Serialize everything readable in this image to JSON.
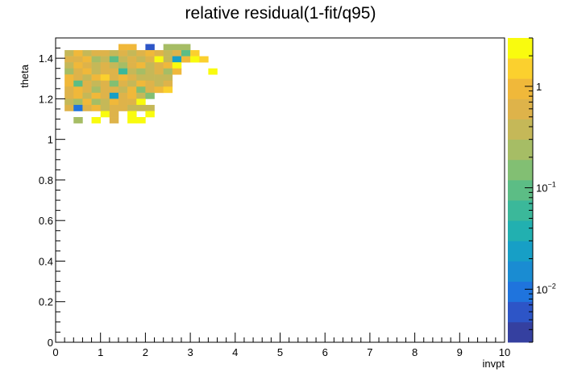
{
  "chart_data": {
    "type": "heatmap",
    "title": "relative residual(1-fit/q95)",
    "xlabel": "invpt",
    "ylabel": "theta",
    "xlim": [
      0,
      10
    ],
    "ylim": [
      0,
      1.5
    ],
    "x_ticks": [
      "0",
      "1",
      "2",
      "3",
      "4",
      "5",
      "6",
      "7",
      "8",
      "9",
      "10"
    ],
    "y_ticks": [
      "0",
      "0.2",
      "0.4",
      "0.6",
      "0.8",
      "1",
      "1.2",
      "1.4"
    ],
    "colorbar": {
      "scale": "log",
      "range": [
        0.003,
        3
      ],
      "tick_labels": [
        "10^-2",
        "10^-1",
        "1"
      ],
      "tick_values": [
        0.01,
        0.1,
        1
      ]
    },
    "bin_width": [
      0.2,
      0.03
    ],
    "cells": [
      [
        1.4,
        1.455,
        0.9
      ],
      [
        1.6,
        1.455,
        0.9
      ],
      [
        2.0,
        1.455,
        0.006
      ],
      [
        2.4,
        1.455,
        0.25
      ],
      [
        2.6,
        1.455,
        0.25
      ],
      [
        2.8,
        1.455,
        0.25
      ],
      [
        0.2,
        1.425,
        0.4
      ],
      [
        0.4,
        1.425,
        0.8
      ],
      [
        0.6,
        1.425,
        0.3
      ],
      [
        0.8,
        1.425,
        0.5
      ],
      [
        1.0,
        1.425,
        0.7
      ],
      [
        1.2,
        1.425,
        0.4
      ],
      [
        1.4,
        1.425,
        0.6
      ],
      [
        1.6,
        1.425,
        0.3
      ],
      [
        1.8,
        1.425,
        0.7
      ],
      [
        2.0,
        1.425,
        0.8
      ],
      [
        2.2,
        1.425,
        0.5
      ],
      [
        2.4,
        1.425,
        0.3
      ],
      [
        2.6,
        1.425,
        0.5
      ],
      [
        2.8,
        1.425,
        0.1
      ],
      [
        3.0,
        1.425,
        1.5
      ],
      [
        0.2,
        1.395,
        0.7
      ],
      [
        0.4,
        1.395,
        0.5
      ],
      [
        0.6,
        1.395,
        0.8
      ],
      [
        0.8,
        1.395,
        0.2
      ],
      [
        1.0,
        1.395,
        0.4
      ],
      [
        1.2,
        1.395,
        0.08
      ],
      [
        1.4,
        1.395,
        0.4
      ],
      [
        1.6,
        1.395,
        0.7
      ],
      [
        1.8,
        1.395,
        0.3
      ],
      [
        2.0,
        1.395,
        0.5
      ],
      [
        2.2,
        1.395,
        2.5
      ],
      [
        2.4,
        1.395,
        0.3
      ],
      [
        2.6,
        1.395,
        0.02
      ],
      [
        2.8,
        1.395,
        0.9
      ],
      [
        3.0,
        1.395,
        2.5
      ],
      [
        3.2,
        1.395,
        1.2
      ],
      [
        0.2,
        1.365,
        0.4
      ],
      [
        0.4,
        1.365,
        0.9
      ],
      [
        0.6,
        1.365,
        0.5
      ],
      [
        0.8,
        1.365,
        0.3
      ],
      [
        1.0,
        1.365,
        0.6
      ],
      [
        1.2,
        1.365,
        0.4
      ],
      [
        1.4,
        1.365,
        0.2
      ],
      [
        1.6,
        1.365,
        0.5
      ],
      [
        1.8,
        1.365,
        0.8
      ],
      [
        2.0,
        1.365,
        0.3
      ],
      [
        2.2,
        1.365,
        0.6
      ],
      [
        2.4,
        1.365,
        0.9
      ],
      [
        2.6,
        1.365,
        2.0
      ],
      [
        0.2,
        1.335,
        0.2
      ],
      [
        0.4,
        1.335,
        0.6
      ],
      [
        0.6,
        1.335,
        0.8
      ],
      [
        0.8,
        1.335,
        0.3
      ],
      [
        1.0,
        1.335,
        0.5
      ],
      [
        1.2,
        1.335,
        0.7
      ],
      [
        1.4,
        1.335,
        0.06
      ],
      [
        1.6,
        1.335,
        0.4
      ],
      [
        1.8,
        1.335,
        0.2
      ],
      [
        2.0,
        1.335,
        0.3
      ],
      [
        2.2,
        1.335,
        0.5
      ],
      [
        2.4,
        1.335,
        0.2
      ],
      [
        2.6,
        1.335,
        1.0
      ],
      [
        3.4,
        1.335,
        2.5
      ],
      [
        0.2,
        1.305,
        0.8
      ],
      [
        0.4,
        1.305,
        0.5
      ],
      [
        0.6,
        1.305,
        0.3
      ],
      [
        0.8,
        1.305,
        0.9
      ],
      [
        1.0,
        1.305,
        1.2
      ],
      [
        1.2,
        1.305,
        0.6
      ],
      [
        1.4,
        1.305,
        0.9
      ],
      [
        1.6,
        1.305,
        0.6
      ],
      [
        1.8,
        1.305,
        0.4
      ],
      [
        2.0,
        1.305,
        0.3
      ],
      [
        2.2,
        1.305,
        0.3
      ],
      [
        2.4,
        1.305,
        0.3
      ],
      [
        0.2,
        1.275,
        1.0
      ],
      [
        0.4,
        1.275,
        0.1
      ],
      [
        0.6,
        1.275,
        0.6
      ],
      [
        0.8,
        1.275,
        0.3
      ],
      [
        1.0,
        1.275,
        0.5
      ],
      [
        1.2,
        1.275,
        0.15
      ],
      [
        1.4,
        1.275,
        0.6
      ],
      [
        1.6,
        1.275,
        0.3
      ],
      [
        1.8,
        1.275,
        0.9
      ],
      [
        2.0,
        1.275,
        0.5
      ],
      [
        2.2,
        1.275,
        0.4
      ],
      [
        2.4,
        1.275,
        0.6
      ],
      [
        0.2,
        1.245,
        0.5
      ],
      [
        0.4,
        1.245,
        0.9
      ],
      [
        0.6,
        1.245,
        0.5
      ],
      [
        0.8,
        1.245,
        0.25
      ],
      [
        1.0,
        1.245,
        0.7
      ],
      [
        1.2,
        1.245,
        0.5
      ],
      [
        1.4,
        1.245,
        0.3
      ],
      [
        1.6,
        1.245,
        0.9
      ],
      [
        1.8,
        1.245,
        0.15
      ],
      [
        2.0,
        1.245,
        0.6
      ],
      [
        2.2,
        1.245,
        0.9
      ],
      [
        2.4,
        1.245,
        1.2
      ],
      [
        0.2,
        1.215,
        0.6
      ],
      [
        0.4,
        1.215,
        0.8
      ],
      [
        0.6,
        1.215,
        0.4
      ],
      [
        0.8,
        1.215,
        0.8
      ],
      [
        1.0,
        1.215,
        0.5
      ],
      [
        1.2,
        1.215,
        0.02
      ],
      [
        1.4,
        1.215,
        0.6
      ],
      [
        1.6,
        1.215,
        0.8
      ],
      [
        1.8,
        1.215,
        0.4
      ],
      [
        2.0,
        1.215,
        0.15
      ],
      [
        0.2,
        1.185,
        0.4
      ],
      [
        0.4,
        1.185,
        0.2
      ],
      [
        0.6,
        1.185,
        0.9
      ],
      [
        0.8,
        1.185,
        0.2
      ],
      [
        1.0,
        1.185,
        0.3
      ],
      [
        1.2,
        1.185,
        0.9
      ],
      [
        1.4,
        1.185,
        0.7
      ],
      [
        1.6,
        1.185,
        0.5
      ],
      [
        1.8,
        1.185,
        3.0
      ],
      [
        0.2,
        1.155,
        0.7
      ],
      [
        0.4,
        1.155,
        0.008
      ],
      [
        0.6,
        1.155,
        0.6
      ],
      [
        0.8,
        1.155,
        0.8
      ],
      [
        1.0,
        1.155,
        0.3
      ],
      [
        1.2,
        1.155,
        0.5
      ],
      [
        1.4,
        1.155,
        0.5
      ],
      [
        1.6,
        1.155,
        0.3
      ],
      [
        1.8,
        1.155,
        0.3
      ],
      [
        2.0,
        1.155,
        0.4
      ],
      [
        1.0,
        1.125,
        2.5
      ],
      [
        1.2,
        1.125,
        0.6
      ],
      [
        1.6,
        1.125,
        2.5
      ],
      [
        2.0,
        1.125,
        2.5
      ],
      [
        0.4,
        1.095,
        0.2
      ],
      [
        0.8,
        1.095,
        2.5
      ],
      [
        1.2,
        1.095,
        0.5
      ],
      [
        1.6,
        1.095,
        2.5
      ],
      [
        1.8,
        1.095,
        3.0
      ]
    ]
  },
  "palette": [
    "#3540a0",
    "#2d55c7",
    "#1f74dd",
    "#1a8cd2",
    "#179fc6",
    "#22b0b0",
    "#3bb89a",
    "#5cbd85",
    "#82bf73",
    "#a6bd65",
    "#c5b858",
    "#deb34a",
    "#f0b83a",
    "#fbd02e",
    "#f9fb0e"
  ]
}
